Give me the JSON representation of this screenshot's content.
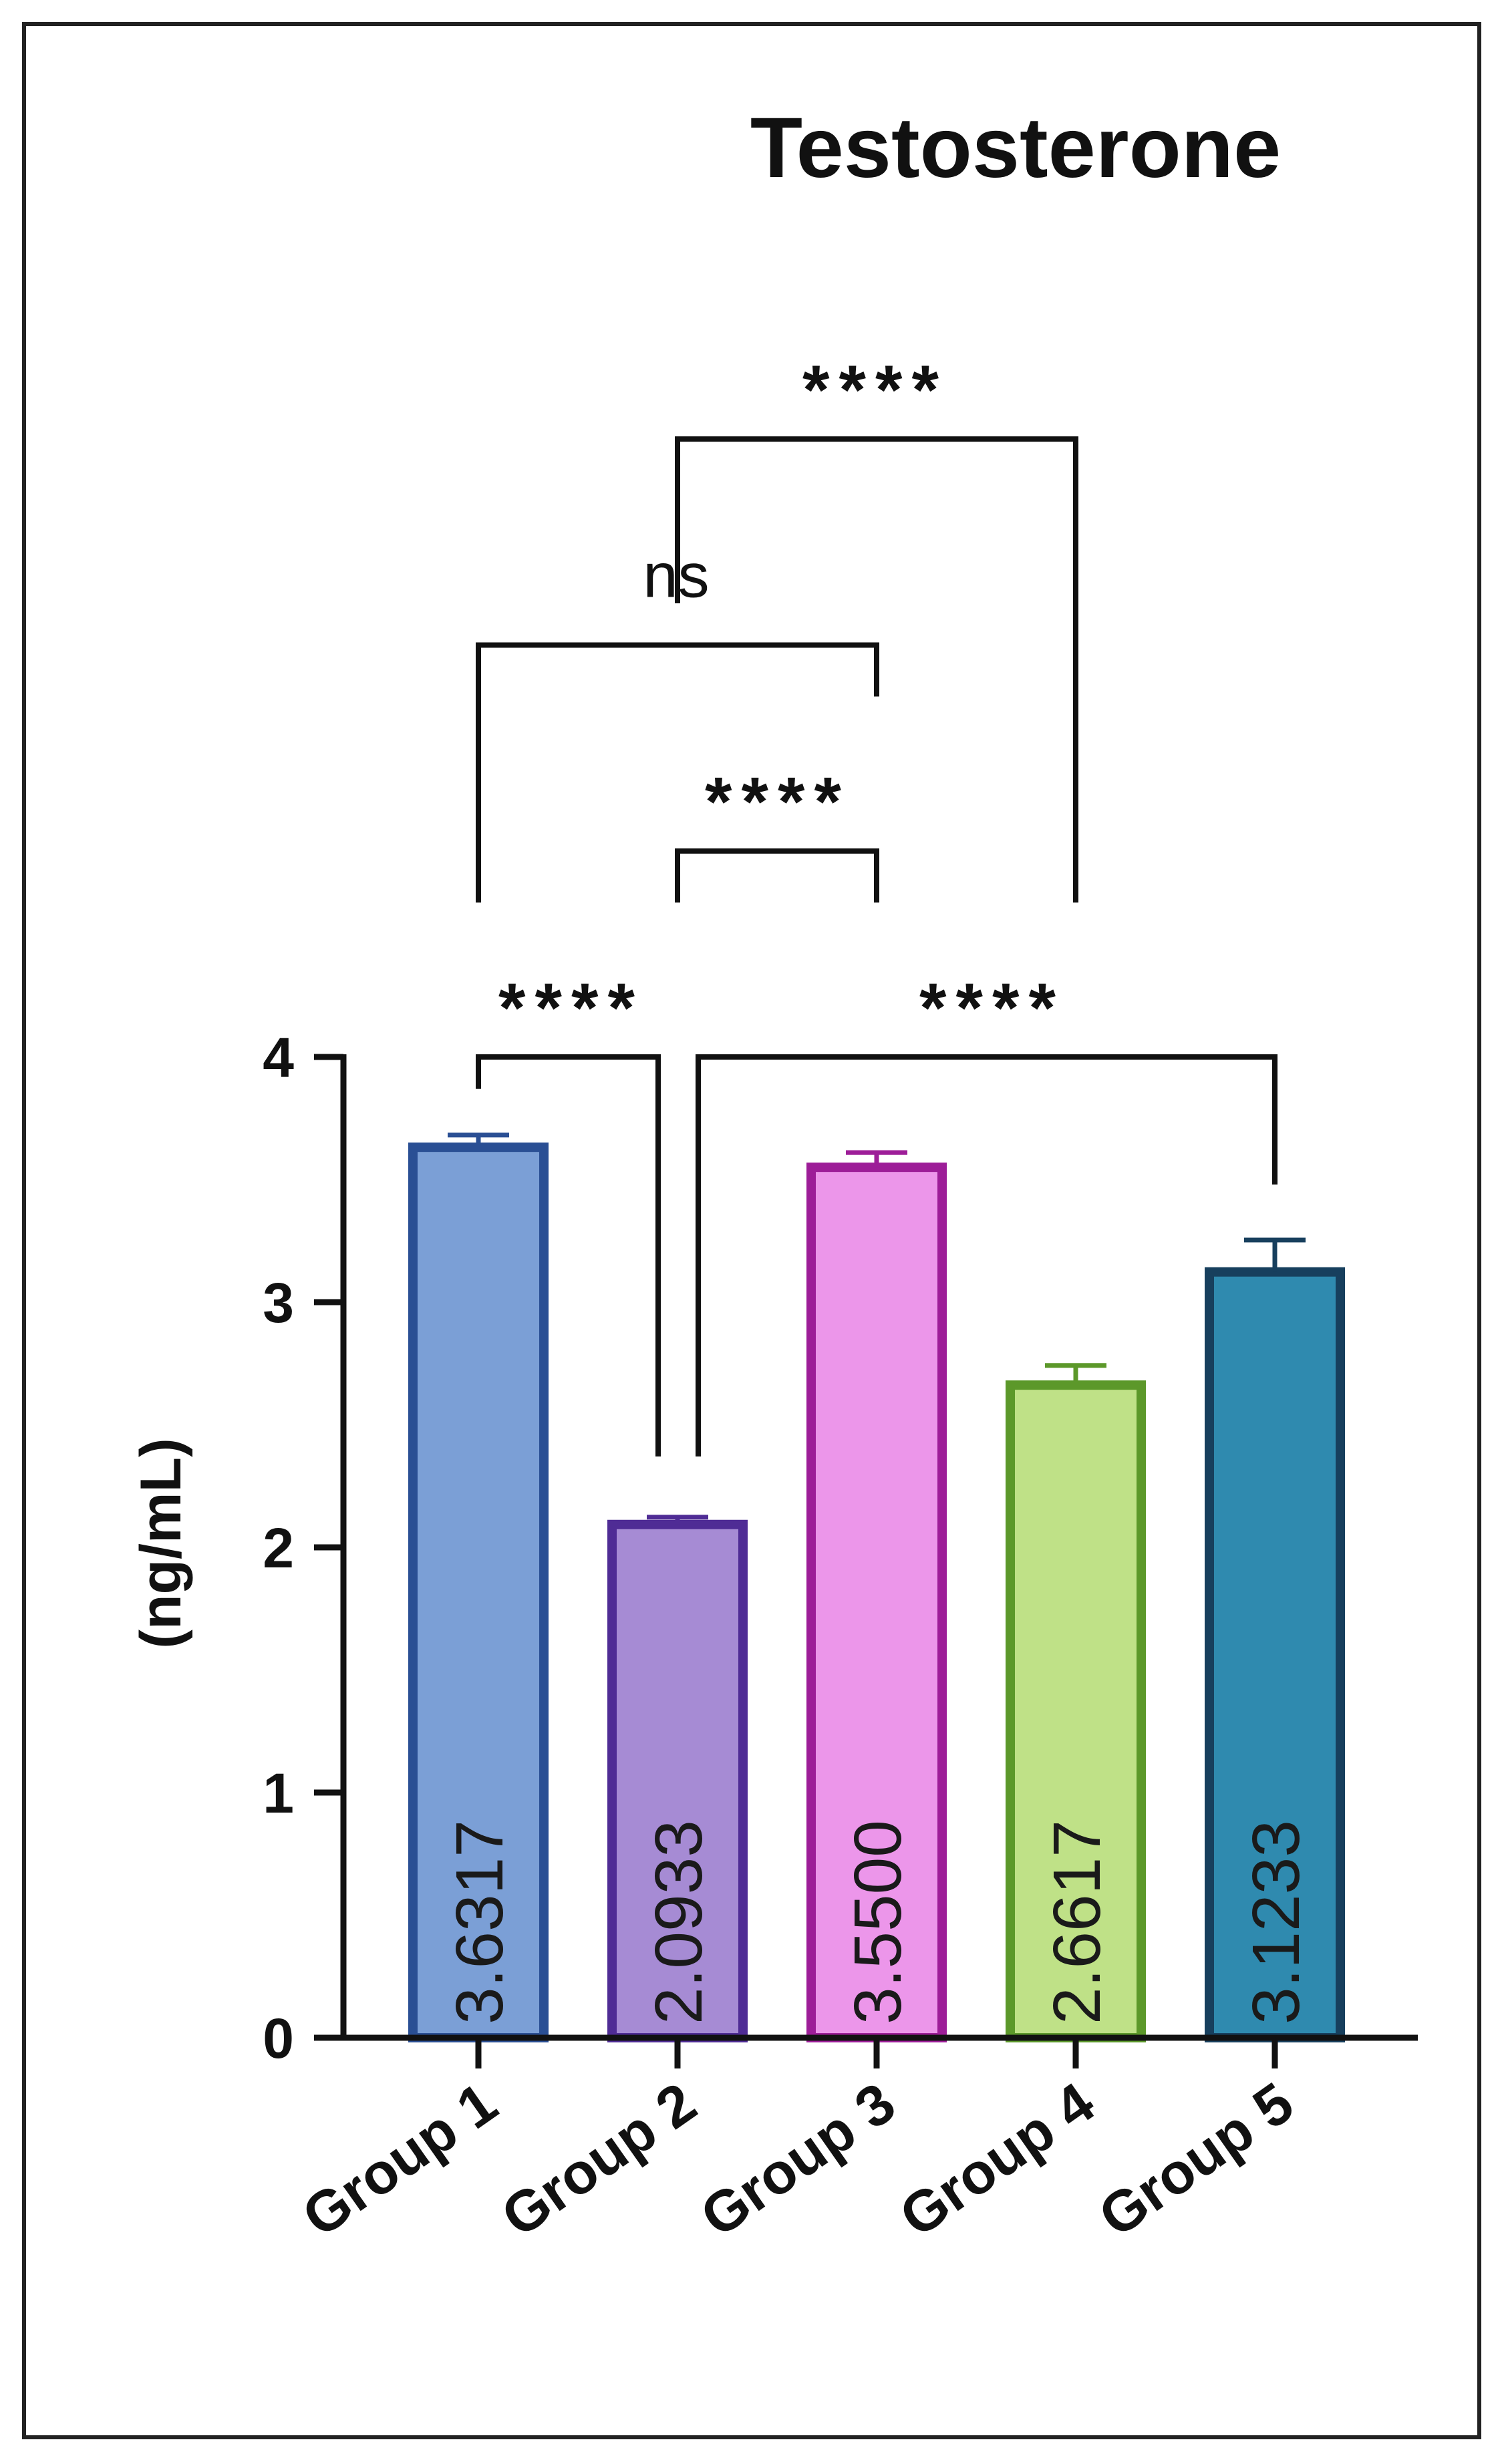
{
  "chart_data": {
    "type": "bar",
    "title": "Testosterone",
    "xlabel": "",
    "ylabel": "(ng/mL)",
    "ylim": [
      0,
      4
    ],
    "yticks": [
      0,
      1,
      2,
      3,
      4
    ],
    "grid": false,
    "legend": "none",
    "categories": [
      "Group 1",
      "Group 2",
      "Group 3",
      "Group 4",
      "Group 5"
    ],
    "values": [
      3.6317,
      2.0933,
      3.55,
      2.6617,
      3.1233
    ],
    "value_labels": [
      "3.6317",
      "2.0933",
      "3.5500",
      "2.6617",
      "3.1233"
    ],
    "errors": [
      0.05,
      0.03,
      0.06,
      0.08,
      0.13
    ],
    "bar_colors": [
      {
        "fill": "#7b9fd6",
        "stroke": "#2a4f94"
      },
      {
        "fill": "#a68bd4",
        "stroke": "#4f2c95"
      },
      {
        "fill": "#ec96ea",
        "stroke": "#9d1d98"
      },
      {
        "fill": "#bfe187",
        "stroke": "#5c982a"
      },
      {
        "fill": "#2f8aaf",
        "stroke": "#173f5d"
      }
    ],
    "annotations": [
      {
        "from": 0,
        "to": 1,
        "label": "****",
        "anchor_value": 4.0
      },
      {
        "from": 1,
        "to": 4,
        "label": "****",
        "anchor_value": 4.0
      },
      {
        "from": 1,
        "to": 2,
        "label": "****",
        "anchor_value": 4.84
      },
      {
        "from": 0,
        "to": 2,
        "label": "ns",
        "anchor_value": 5.68
      },
      {
        "from": 1,
        "to": 3,
        "label": "****",
        "anchor_value": 6.52
      }
    ]
  }
}
